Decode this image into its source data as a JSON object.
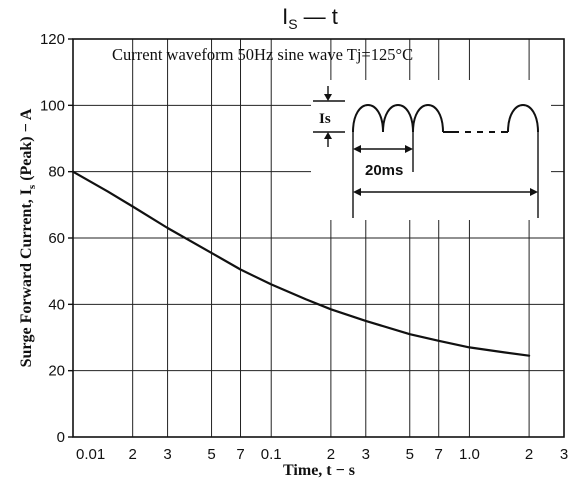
{
  "chart_data": {
    "type": "line",
    "title": "I",
    "title_sub": "S",
    "title_suffix": " — t",
    "annotation": "Current waveform 50Hz sine wave Tj=125°C",
    "xlabel": "Time, t − s",
    "ylabel": "Surge Forward Current, I",
    "ylabel_sub": "s",
    "ylabel_suffix": " (Peak) − A",
    "x_scale": "log",
    "xlim": [
      0.01,
      3
    ],
    "ylim": [
      0,
      120
    ],
    "grid": true,
    "x_ticks": [
      {
        "value": 0.01,
        "label": "0.01"
      },
      {
        "value": 0.02,
        "label": "2"
      },
      {
        "value": 0.03,
        "label": "3"
      },
      {
        "value": 0.05,
        "label": "5"
      },
      {
        "value": 0.07,
        "label": "7"
      },
      {
        "value": 0.1,
        "label": "0.1"
      },
      {
        "value": 0.2,
        "label": "2"
      },
      {
        "value": 0.3,
        "label": "3"
      },
      {
        "value": 0.5,
        "label": "5"
      },
      {
        "value": 0.7,
        "label": "7"
      },
      {
        "value": 1.0,
        "label": "1.0"
      },
      {
        "value": 2.0,
        "label": "2"
      },
      {
        "value": 3.0,
        "label": "3"
      }
    ],
    "y_ticks": [
      {
        "value": 0,
        "label": "0"
      },
      {
        "value": 20,
        "label": "20"
      },
      {
        "value": 40,
        "label": "40"
      },
      {
        "value": 60,
        "label": "60"
      },
      {
        "value": 80,
        "label": "80"
      },
      {
        "value": 100,
        "label": "100"
      },
      {
        "value": 120,
        "label": "120"
      }
    ],
    "series": [
      {
        "x": [
          0.01,
          0.015,
          0.02,
          0.03,
          0.05,
          0.07,
          0.1,
          0.15,
          0.2,
          0.3,
          0.5,
          0.7,
          1.0,
          1.5,
          2.0
        ],
        "y": [
          80,
          74,
          69.5,
          63,
          55.5,
          50.5,
          46,
          41.5,
          38.5,
          35,
          31,
          29,
          27,
          25.5,
          24.5
        ]
      }
    ],
    "inset": {
      "is_label": "Is",
      "period_label": "20ms"
    }
  }
}
